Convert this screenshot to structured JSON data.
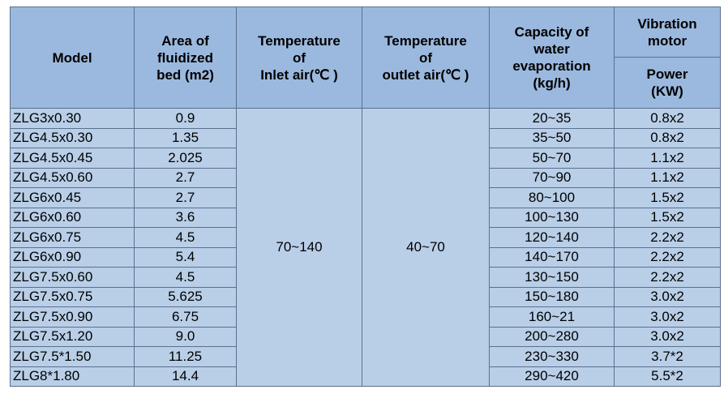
{
  "header": {
    "model": [
      "Model"
    ],
    "area": [
      "Area of",
      "fluidized",
      "bed (m2)"
    ],
    "inlet": [
      "Temperature",
      "of",
      "Inlet air(℃ )"
    ],
    "outlet": [
      "Temperature",
      "of",
      "outlet air(℃ )"
    ],
    "capacity": [
      "Capacity of",
      "water",
      "evaporation",
      "(kg/h)"
    ],
    "vibration": [
      "Vibration",
      "motor"
    ],
    "power": [
      "Power",
      "(KW)"
    ]
  },
  "table": {
    "inlet": "70~140",
    "outlet": "40~70",
    "rows": [
      [
        "ZLG3x0.30",
        "0.9",
        "20~35",
        "0.8x2"
      ],
      [
        "ZLG4.5x0.30",
        "1.35",
        "35~50",
        "0.8x2"
      ],
      [
        "ZLG4.5x0.45",
        "2.025",
        "50~70",
        "1.1x2"
      ],
      [
        "ZLG4.5x0.60",
        "2.7",
        "70~90",
        "1.1x2"
      ],
      [
        "ZLG6x0.45",
        "2.7",
        "80~100",
        "1.5x2"
      ],
      [
        "ZLG6x0.60",
        "3.6",
        "100~130",
        "1.5x2"
      ],
      [
        "ZLG6x0.75",
        "4.5",
        "120~140",
        "2.2x2"
      ],
      [
        "ZLG6x0.90",
        "5.4",
        "140~170",
        "2.2x2"
      ],
      [
        "ZLG7.5x0.60",
        "4.5",
        "130~150",
        "2.2x2"
      ],
      [
        "ZLG7.5x0.75",
        "5.625",
        "150~180",
        "3.0x2"
      ],
      [
        "ZLG7.5x0.90",
        "6.75",
        "160~21",
        "3.0x2"
      ],
      [
        "ZLG7.5x1.20",
        "9.0",
        "200~280",
        "3.0x2"
      ],
      [
        "ZLG7.5*1.50",
        "11.25",
        "230~330",
        "3.7*2"
      ],
      [
        "ZLG8*1.80",
        "14.4",
        "290~420",
        "5.5*2"
      ]
    ]
  }
}
